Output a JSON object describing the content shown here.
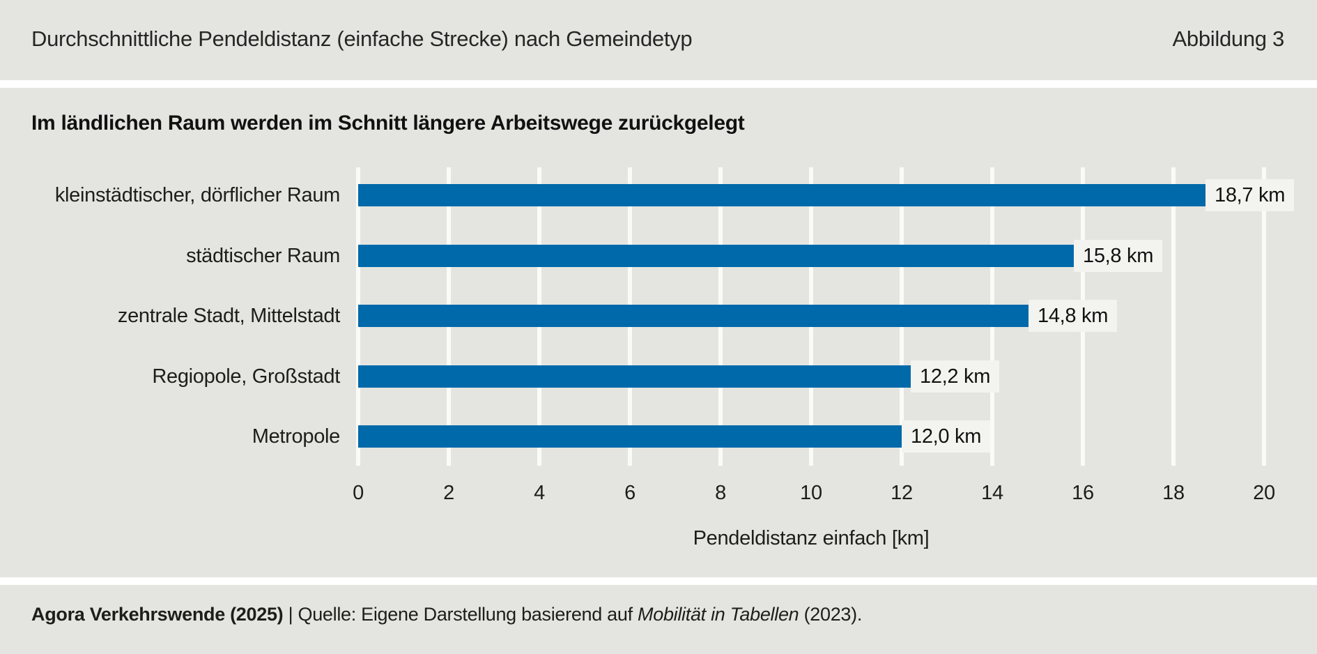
{
  "header": {
    "title": "Durchschnittliche Pendeldistanz (einfache Strecke) nach Gemeindetyp",
    "figure_label": "Abbildung 3"
  },
  "chart_data": {
    "type": "bar",
    "orientation": "horizontal",
    "title": "Im ländlichen Raum werden im Schnitt längere Arbeitswege zurückgelegt",
    "categories": [
      "kleinstädtischer, dörflicher Raum",
      "städtischer Raum",
      "zentrale Stadt, Mittelstadt",
      "Regiopole, Großstadt",
      "Metropole"
    ],
    "values": [
      18.7,
      15.8,
      14.8,
      12.2,
      12.0
    ],
    "value_labels": [
      "18,7 km",
      "15,8 km",
      "14,8 km",
      "12,2 km",
      "12,0 km"
    ],
    "xlabel": "Pendeldistanz einfach [km]",
    "xlim": [
      0,
      20
    ],
    "xticks": [
      0,
      2,
      4,
      6,
      8,
      10,
      12,
      14,
      16,
      18,
      20
    ],
    "grid": "vertical-white-gridlines",
    "legend": "none",
    "bar_color": "#0069aa",
    "value_box_color": "#f3f4ef"
  },
  "footer": {
    "source_bold": "Agora Verkehrswende (2025)",
    "separator": " | ",
    "source_text_1": "Quelle: Eigene Darstellung basierend auf ",
    "source_italic": "Mobilität in Tabellen",
    "source_text_2": " (2023)."
  },
  "colors": {
    "background": "#e4e5e0",
    "divider": "#ffffff",
    "gridline": "#fafaf7",
    "bar": "#0069aa",
    "value_box": "#f3f4ef",
    "text": "#1d1d1b"
  }
}
